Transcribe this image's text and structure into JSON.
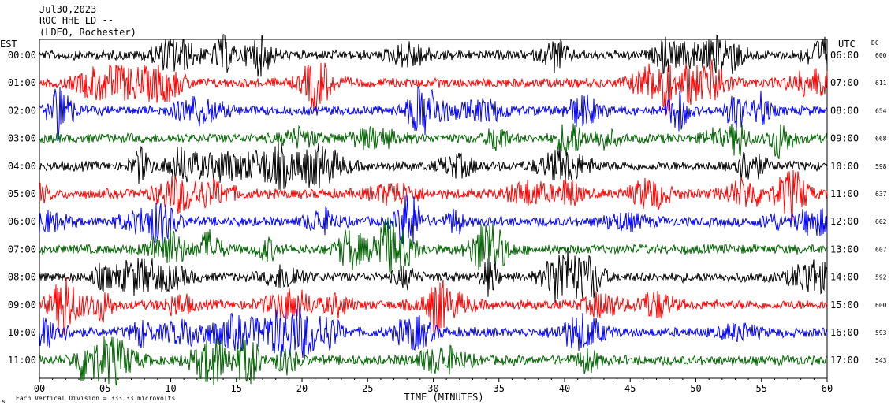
{
  "header": {
    "date": "Jul30,2023",
    "station": "ROC HHE LD --",
    "network": "(LDEO, Rochester)"
  },
  "labels": {
    "left_tz": "EST",
    "right_tz": "UTC",
    "dc_header": "DC",
    "xlabel": "TIME (MINUTES)",
    "footer": "Each Vertical Division =   333.33 microvolts",
    "footer_mark": "s"
  },
  "colors": {
    "black": "#000000",
    "red": "#ff0000",
    "blue": "#0000ff",
    "green": "#006400"
  },
  "chart_data": {
    "type": "line",
    "title": "",
    "xlabel": "TIME (MINUTES)",
    "ylabel": "",
    "xlim": [
      0,
      60
    ],
    "x_ticks": [
      "00",
      "05",
      "10",
      "15",
      "20",
      "25",
      "30",
      "35",
      "40",
      "45",
      "50",
      "55",
      "60"
    ],
    "series": [
      {
        "est": "00:00",
        "utc": "06:00",
        "dc": "600",
        "color": "black"
      },
      {
        "est": "01:00",
        "utc": "07:00",
        "dc": "611",
        "color": "red"
      },
      {
        "est": "02:00",
        "utc": "08:00",
        "dc": "654",
        "color": "blue"
      },
      {
        "est": "03:00",
        "utc": "09:00",
        "dc": "668",
        "color": "green"
      },
      {
        "est": "04:00",
        "utc": "10:00",
        "dc": "598",
        "color": "black"
      },
      {
        "est": "05:00",
        "utc": "11:00",
        "dc": "637",
        "color": "red"
      },
      {
        "est": "06:00",
        "utc": "12:00",
        "dc": "602",
        "color": "blue"
      },
      {
        "est": "07:00",
        "utc": "13:00",
        "dc": "607",
        "color": "green"
      },
      {
        "est": "08:00",
        "utc": "14:00",
        "dc": "592",
        "color": "black"
      },
      {
        "est": "09:00",
        "utc": "15:00",
        "dc": "600",
        "color": "red"
      },
      {
        "est": "10:00",
        "utc": "16:00",
        "dc": "593",
        "color": "blue"
      },
      {
        "est": "11:00",
        "utc": "17:00",
        "dc": "543",
        "color": "green"
      }
    ]
  }
}
